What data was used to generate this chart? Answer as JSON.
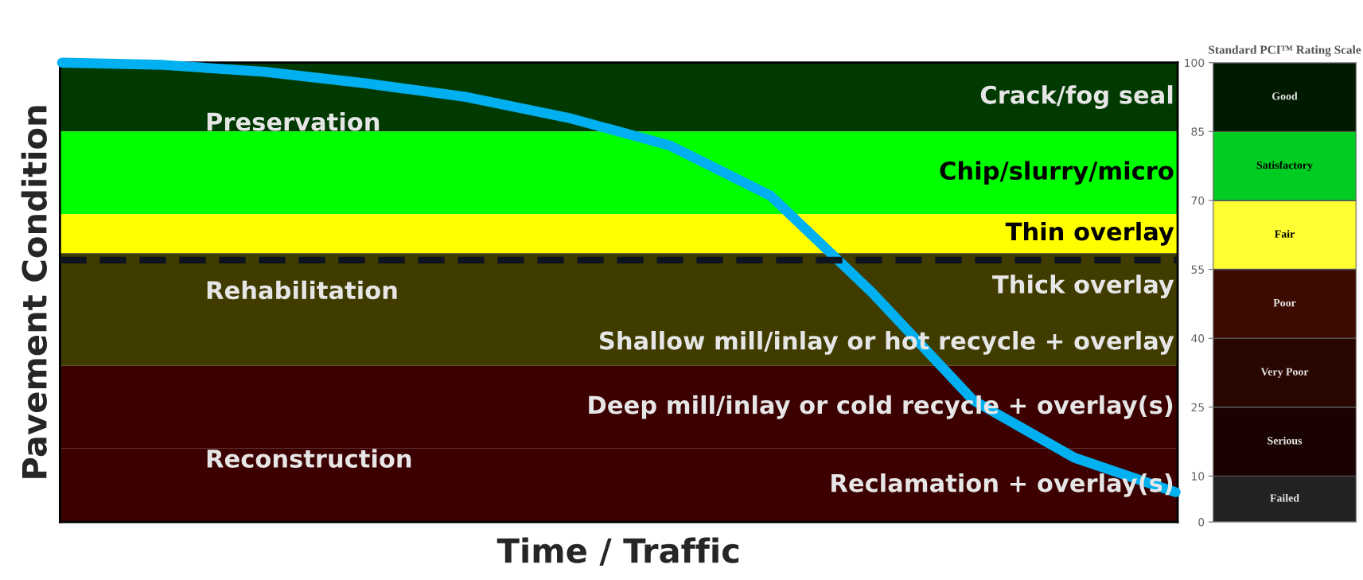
{
  "chart_data": [
    {
      "type": "line",
      "xlabel": "Time / Traffic",
      "ylabel": "Pavement Condition",
      "categories": [
        null,
        null,
        null,
        null,
        null,
        null,
        null,
        null,
        null,
        null,
        null,
        null
      ],
      "series": [
        {
          "color": "#00b0f0",
          "values": [
            100,
            99.5,
            98,
            95.5,
            92.5,
            88,
            82,
            71,
            50,
            26.5,
            14,
            6.5
          ]
        }
      ],
      "ylim": [
        0,
        100
      ],
      "tick_labels": false,
      "legend": false,
      "bands": [
        {
          "axis": "y",
          "from": 85,
          "to": 100,
          "label": "Crack/fog seal",
          "color": "#003a00"
        },
        {
          "axis": "y",
          "from": 67,
          "to": 85,
          "label": "Chip/slurry/micro",
          "color": "#00ff00"
        },
        {
          "axis": "y",
          "from": 58.5,
          "to": 67,
          "label": "Thin overlay",
          "color": "#ffff00"
        },
        {
          "axis": "y",
          "from": 44,
          "to": 58.5,
          "label": "Thick overlay",
          "color": "#403c00"
        },
        {
          "axis": "y",
          "from": 34,
          "to": 44,
          "label": "Shallow mill/inlay or hot recycle + overlay",
          "color": "#403c00"
        },
        {
          "axis": "y",
          "from": 16,
          "to": 34,
          "label": "Deep mill/inlay or cold recycle + overlay(s)",
          "color": "#3c0000"
        },
        {
          "axis": "y",
          "from": 0,
          "to": 16,
          "label": "Reclamation + overlay(s)",
          "color": "#3c0000"
        }
      ],
      "ref_lines": [
        {
          "axis": "y",
          "value": 57,
          "color": "#0d1420",
          "line_style": "dashed"
        }
      ],
      "annotations": [
        "Preservation",
        "Rehabilitation",
        "Reconstruction"
      ]
    },
    {
      "type": "bar",
      "stacked": true,
      "title": "Standard PCI™ Rating Scale",
      "categories": [
        null
      ],
      "ylim": [
        0,
        100
      ],
      "yticks": [
        0,
        10,
        25,
        40,
        55,
        70,
        85,
        100
      ],
      "legend": false,
      "tick_labels": "y",
      "series": [
        {
          "name": "Failed",
          "color": "#222222",
          "values": [
            10
          ]
        },
        {
          "name": "Serious",
          "color": "#1a0200",
          "values": [
            15
          ]
        },
        {
          "name": "Very Poor",
          "color": "#2a0600",
          "values": [
            15
          ]
        },
        {
          "name": "Poor",
          "color": "#3d0a00",
          "values": [
            15
          ]
        },
        {
          "name": "Fair",
          "color": "#ffff33",
          "values": [
            15
          ]
        },
        {
          "name": "Satisfactory",
          "color": "#00cc22",
          "values": [
            15
          ]
        },
        {
          "name": "Good",
          "color": "#001a00",
          "values": [
            15
          ]
        }
      ]
    }
  ]
}
